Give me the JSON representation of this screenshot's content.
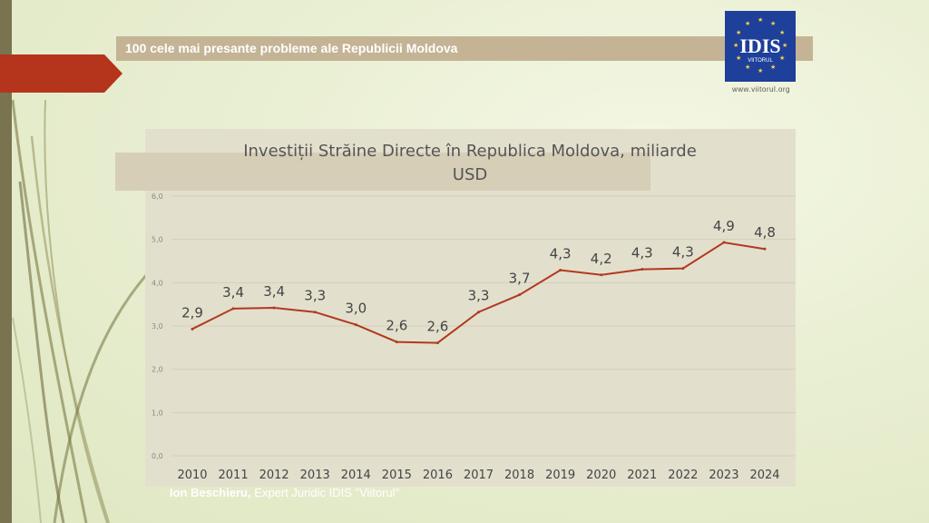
{
  "header": {
    "title": "100 cele mai presante probleme ale Republicii Moldova"
  },
  "logo": {
    "text": "IDIS",
    "sub": "VIITORUL",
    "url": "www.viitorul.org",
    "color": "#1e3f9a"
  },
  "footer": {
    "author": "Ion Beschieru,",
    "role": "Expert Juridic IDIS \"Viitorul\""
  },
  "colors": {
    "line": "#b03a1e",
    "accent_arrow": "#b5341c",
    "header_band": "#c4b495",
    "strip": "#7a7350"
  },
  "chart_data": {
    "type": "line",
    "title_line1": "Investiții Străine Directe în Republica Moldova, miliarde",
    "title_line2": "USD",
    "x": [
      "2010",
      "2011",
      "2012",
      "2013",
      "2014",
      "2015",
      "2016",
      "2017",
      "2018",
      "2019",
      "2020",
      "2021",
      "2022",
      "2023",
      "2024"
    ],
    "values": [
      2.93,
      3.4,
      3.42,
      3.32,
      3.03,
      2.63,
      2.61,
      3.32,
      3.72,
      4.29,
      4.18,
      4.31,
      4.33,
      4.93,
      4.78
    ],
    "labels": [
      "2,9",
      "3,4",
      "3,4",
      "3,3",
      "3,0",
      "2,6",
      "2,6",
      "3,3",
      "3,7",
      "4,3",
      "4,2",
      "4,3",
      "4,3",
      "4,9",
      "4,8"
    ],
    "ylim": [
      0,
      6
    ],
    "y_ticks": [
      "0,0",
      "1,0",
      "2,0",
      "3,0",
      "4,0",
      "5,0",
      "6,0"
    ],
    "grid": true
  }
}
